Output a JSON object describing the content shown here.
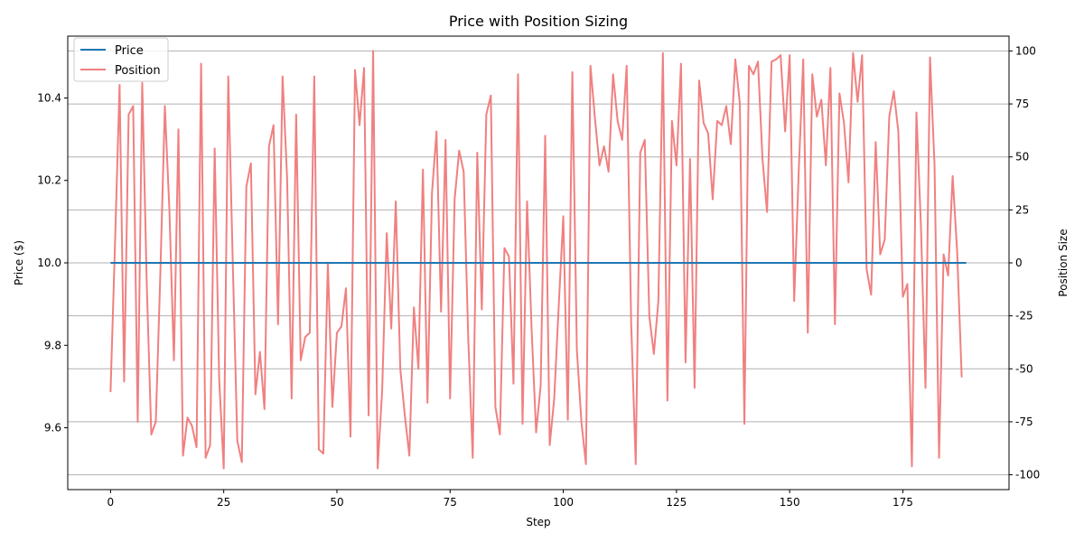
{
  "chart_data": {
    "type": "line",
    "title": "Price with Position Sizing",
    "xlabel": "Step",
    "ylabel_left": "Price ($)",
    "ylabel_right": "Position Size",
    "xlim": [
      -9.45,
      198.45
    ],
    "ylim_left": [
      9.45,
      10.55
    ],
    "ylim_right": [
      -107,
      107
    ],
    "x_ticks": [
      0,
      25,
      50,
      75,
      100,
      125,
      150,
      175
    ],
    "y_left_ticks": [
      9.6,
      9.8,
      10.0,
      10.2,
      10.4
    ],
    "y_left_tick_labels": [
      "9.6",
      "9.8",
      "10.0",
      "10.2",
      "10.4"
    ],
    "y_right_ticks": [
      -100,
      -75,
      -50,
      -25,
      0,
      25,
      50,
      75,
      100
    ],
    "grid": "horizontal lines at right-axis ticks",
    "legend_position": "top-left",
    "colors": {
      "price": "#1f77b4",
      "position": "#f08080",
      "grid": "#b0b0b0"
    },
    "series": [
      {
        "name": "Price",
        "axis": "left",
        "x_start": 0,
        "x_end": 189,
        "values": [
          10.0,
          10.0
        ]
      },
      {
        "name": "Position",
        "axis": "right",
        "x_start": 0,
        "values": [
          -61,
          10,
          84,
          -56,
          70,
          74,
          -75,
          85,
          -10,
          -81,
          -75,
          -5,
          74,
          25,
          -46,
          63,
          -91,
          -73,
          -77,
          -87,
          94,
          -92,
          -86,
          54,
          -55,
          -97,
          88,
          0,
          -84,
          -94,
          36,
          47,
          -62,
          -42,
          -69,
          55,
          65,
          -29,
          88,
          40,
          -64,
          70,
          -46,
          -35,
          -33,
          88,
          -88,
          -90,
          0,
          -68,
          -33,
          -30,
          -12,
          -82,
          91,
          65,
          92,
          -72,
          100,
          -97,
          -60,
          14,
          -31,
          29,
          -50,
          -72,
          -91,
          -21,
          -50,
          44,
          -66,
          33,
          62,
          -23,
          58,
          -64,
          30,
          53,
          43,
          -35,
          -92,
          52,
          -22,
          70,
          79,
          -68,
          -81,
          7,
          3,
          -57,
          89,
          -76,
          29,
          -31,
          -80,
          -58,
          60,
          -86,
          -64,
          -20,
          22,
          -74,
          90,
          -41,
          -75,
          -95,
          93,
          68,
          46,
          55,
          43,
          89,
          67,
          58,
          93,
          -29,
          -95,
          52,
          58,
          -25,
          -43,
          -18,
          99,
          -65,
          67,
          46,
          94,
          -47,
          49,
          -59,
          86,
          66,
          61,
          30,
          67,
          65,
          74,
          56,
          96,
          75,
          -76,
          93,
          89,
          95,
          49,
          24,
          95,
          96,
          98,
          62,
          98,
          -18,
          43,
          96,
          -33,
          89,
          69,
          77,
          46,
          92,
          -29,
          80,
          66,
          38,
          99,
          76,
          98,
          -3,
          -15,
          57,
          4,
          11,
          69,
          81,
          62,
          -16,
          -10,
          -96,
          71,
          17,
          -59,
          97,
          46,
          -92,
          4,
          -6,
          41,
          5,
          -54
        ]
      }
    ]
  }
}
